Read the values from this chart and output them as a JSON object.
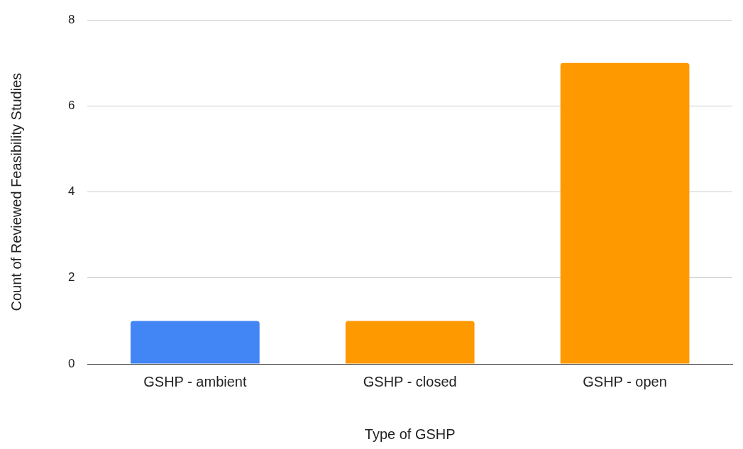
{
  "chart_data": {
    "type": "bar",
    "xlabel": "Type of GSHP",
    "ylabel": "Count of Reviewed Feasibility Studies",
    "categories": [
      "GSHP - ambient",
      "GSHP - closed",
      "GSHP - open"
    ],
    "values": [
      1,
      1,
      7
    ],
    "colors": [
      "#4285f4",
      "#ff9900",
      "#ff9900"
    ],
    "ylim": [
      0,
      8
    ],
    "yticks": [
      0,
      2,
      4,
      6,
      8
    ],
    "grid": "y",
    "legend": false
  }
}
